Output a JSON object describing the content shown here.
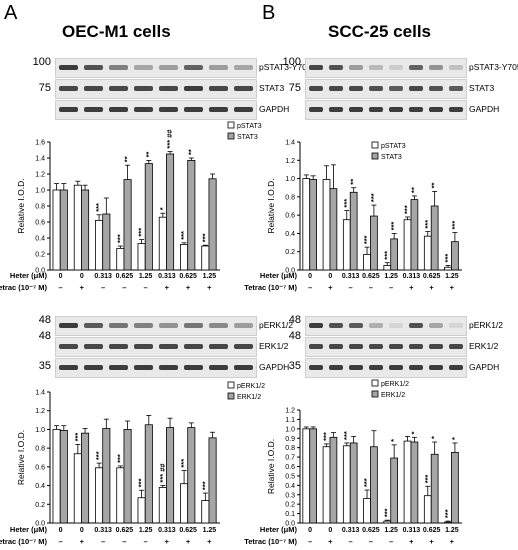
{
  "panels": [
    {
      "letter": "A",
      "title": "OEC-M1 cells",
      "blot_top": {
        "mw": [
          "100",
          "75"
        ],
        "rows": [
          {
            "label": "pSTAT3-Y705",
            "intensity": [
              0.9,
              0.8,
              0.55,
              0.35,
              0.4,
              0.7,
              0.4,
              0.35
            ]
          },
          {
            "label": "STAT3",
            "intensity": [
              0.85,
              0.85,
              0.85,
              0.85,
              0.85,
              0.9,
              0.85,
              0.85
            ]
          },
          {
            "label": "GAPDH",
            "intensity": [
              0.9,
              0.9,
              0.9,
              0.9,
              0.9,
              0.9,
              0.9,
              0.9
            ]
          }
        ]
      },
      "blot_bottom": {
        "mw": [
          "48",
          "48",
          "35"
        ],
        "rows": [
          {
            "label": "pERK1/2",
            "intensity": [
              0.9,
              0.75,
              0.6,
              0.55,
              0.45,
              0.6,
              0.5,
              0.4
            ]
          },
          {
            "label": "ERK1/2",
            "intensity": [
              0.85,
              0.85,
              0.85,
              0.85,
              0.85,
              0.85,
              0.85,
              0.85
            ]
          },
          {
            "label": "GAPDH",
            "intensity": [
              0.9,
              0.9,
              0.9,
              0.9,
              0.9,
              0.9,
              0.9,
              0.9
            ]
          }
        ]
      },
      "conditions": {
        "heter_label": "Heter (μM)",
        "heter": [
          "0",
          "0",
          "0.313",
          "0.625",
          "1.25",
          "0.313",
          "0.625",
          "1.25"
        ],
        "tetrac_label": "Tetrac (10⁻⁷ M)",
        "tetrac": [
          "–",
          "+",
          "–",
          "–",
          "–",
          "+",
          "+",
          "+"
        ]
      }
    },
    {
      "letter": "B",
      "title": "SCC-25 cells",
      "blot_top": {
        "mw": [
          "100",
          "75"
        ],
        "rows": [
          {
            "label": "pSTAT3-Y705",
            "intensity": [
              0.85,
              0.8,
              0.4,
              0.25,
              0.15,
              0.7,
              0.45,
              0.2
            ]
          },
          {
            "label": "STAT3",
            "intensity": [
              0.85,
              0.85,
              0.85,
              0.8,
              0.75,
              0.85,
              0.8,
              0.75
            ]
          },
          {
            "label": "GAPDH",
            "intensity": [
              0.9,
              0.9,
              0.9,
              0.9,
              0.9,
              0.9,
              0.9,
              0.9
            ]
          }
        ]
      },
      "blot_bottom": {
        "mw": [
          "48",
          "48",
          "35"
        ],
        "rows": [
          {
            "label": "pERK1/2",
            "intensity": [
              0.9,
              0.8,
              0.75,
              0.3,
              0.1,
              0.8,
              0.35,
              0.1
            ]
          },
          {
            "label": "ERK1/2",
            "intensity": [
              0.85,
              0.85,
              0.85,
              0.85,
              0.85,
              0.85,
              0.85,
              0.85
            ]
          },
          {
            "label": "GAPDH",
            "intensity": [
              0.9,
              0.9,
              0.9,
              0.9,
              0.9,
              0.9,
              0.9,
              0.9
            ]
          }
        ]
      },
      "conditions": {
        "heter_label": "Heter (μM)",
        "heter": [
          "0",
          "0",
          "0.313",
          "0.625",
          "1.25",
          "0.313",
          "0.625",
          "1.25"
        ],
        "tetrac_label": "Tetrac (10⁻⁷ M)",
        "tetrac": [
          "–",
          "+",
          "–",
          "–",
          "–",
          "+",
          "+",
          "+"
        ]
      }
    }
  ],
  "chart_data": [
    {
      "type": "bar",
      "panel": "A",
      "ylabel": "Relative I.O.D.",
      "ylim": [
        0,
        1.6
      ],
      "yticks": [
        "0.0",
        "0.2",
        "0.4",
        "0.6",
        "0.8",
        "1.0",
        "1.2",
        "1.4",
        "1.6"
      ],
      "series": [
        {
          "name": "pSTAT3",
          "color": "#ffffff",
          "values": [
            1.0,
            1.06,
            0.62,
            0.27,
            0.33,
            0.66,
            0.32,
            0.3
          ],
          "err": [
            0.08,
            0.05,
            0.07,
            0.03,
            0.05,
            0.05,
            0.02,
            0.01
          ]
        },
        {
          "name": "STAT3",
          "color": "#a6a6a6",
          "values": [
            1.0,
            1.0,
            0.7,
            1.13,
            1.33,
            1.45,
            1.37,
            1.14
          ],
          "err": [
            0.08,
            0.06,
            0.2,
            0.18,
            0.04,
            0.03,
            0.03,
            0.06
          ]
        }
      ],
      "annotations": [
        {
          "bar": 2,
          "series": 0,
          "text": "***"
        },
        {
          "bar": 3,
          "series": 0,
          "text": "***"
        },
        {
          "bar": 3,
          "series": 1,
          "text": "**"
        },
        {
          "bar": 4,
          "series": 0,
          "text": "***"
        },
        {
          "bar": 4,
          "series": 1,
          "text": "**"
        },
        {
          "bar": 5,
          "series": 0,
          "text": "*"
        },
        {
          "bar": 5,
          "series": 1,
          "text": "*** ##"
        },
        {
          "bar": 6,
          "series": 0,
          "text": "***"
        },
        {
          "bar": 6,
          "series": 1,
          "text": "**"
        },
        {
          "bar": 7,
          "series": 0,
          "text": "***"
        }
      ]
    },
    {
      "type": "bar",
      "panel": "B",
      "ylabel": "Relative I.O.D.",
      "ylim": [
        0,
        1.4
      ],
      "yticks": [
        "0.0",
        "0.2",
        "0.4",
        "0.6",
        "0.8",
        "1.0",
        "1.2",
        "1.4"
      ],
      "series": [
        {
          "name": "pSTAT3",
          "color": "#ffffff",
          "values": [
            1.0,
            0.99,
            0.55,
            0.17,
            0.05,
            0.55,
            0.37,
            0.03
          ],
          "err": [
            0.04,
            0.15,
            0.1,
            0.08,
            0.03,
            0.03,
            0.05,
            0.02
          ]
        },
        {
          "name": "STAT3",
          "color": "#a6a6a6",
          "values": [
            0.99,
            0.89,
            0.85,
            0.59,
            0.34,
            0.77,
            0.7,
            0.31
          ],
          "err": [
            0.04,
            0.26,
            0.05,
            0.12,
            0.06,
            0.04,
            0.16,
            0.1
          ]
        }
      ],
      "annotations": [
        {
          "bar": 2,
          "series": 0,
          "text": "***"
        },
        {
          "bar": 2,
          "series": 1,
          "text": "**"
        },
        {
          "bar": 3,
          "series": 0,
          "text": "***"
        },
        {
          "bar": 3,
          "series": 1,
          "text": "***"
        },
        {
          "bar": 4,
          "series": 0,
          "text": "***"
        },
        {
          "bar": 4,
          "series": 1,
          "text": "***"
        },
        {
          "bar": 5,
          "series": 0,
          "text": "***"
        },
        {
          "bar": 5,
          "series": 1,
          "text": "**"
        },
        {
          "bar": 6,
          "series": 0,
          "text": "***"
        },
        {
          "bar": 6,
          "series": 1,
          "text": "**"
        },
        {
          "bar": 7,
          "series": 0,
          "text": "***"
        },
        {
          "bar": 7,
          "series": 1,
          "text": "***"
        }
      ]
    },
    {
      "type": "bar",
      "panel": "A",
      "ylabel": "Relative I.O.D.",
      "ylim": [
        0,
        1.4
      ],
      "yticks": [
        "0.0",
        "0.2",
        "0.4",
        "0.6",
        "0.8",
        "1.0",
        "1.2",
        "1.4"
      ],
      "series": [
        {
          "name": "pERK1/2",
          "color": "#ffffff",
          "values": [
            1.0,
            0.74,
            0.59,
            0.59,
            0.27,
            0.38,
            0.42,
            0.24
          ],
          "err": [
            0.04,
            0.1,
            0.05,
            0.02,
            0.08,
            0.02,
            0.14,
            0.08
          ]
        },
        {
          "name": "ERK1/2",
          "color": "#a6a6a6",
          "values": [
            0.99,
            0.96,
            1.01,
            1.0,
            1.05,
            1.02,
            1.02,
            0.91
          ],
          "err": [
            0.05,
            0.05,
            0.1,
            0.09,
            0.1,
            0.1,
            0.05,
            0.06
          ]
        }
      ],
      "annotations": [
        {
          "bar": 1,
          "series": 0,
          "text": "***"
        },
        {
          "bar": 2,
          "series": 0,
          "text": "***"
        },
        {
          "bar": 3,
          "series": 0,
          "text": "***"
        },
        {
          "bar": 4,
          "series": 0,
          "text": "***"
        },
        {
          "bar": 5,
          "series": 0,
          "text": "*** ##"
        },
        {
          "bar": 6,
          "series": 0,
          "text": "***"
        },
        {
          "bar": 7,
          "series": 0,
          "text": "***"
        }
      ]
    },
    {
      "type": "bar",
      "panel": "B",
      "ylabel": "Relative I.O.D.",
      "ylim": [
        0,
        1.2
      ],
      "yticks": [
        "0.0",
        "0.1",
        "0.2",
        "0.3",
        "0.4",
        "0.5",
        "0.6",
        "0.7",
        "0.8",
        "0.9",
        "1.0",
        "1.1",
        "1.2"
      ],
      "series": [
        {
          "name": "pERK1/2",
          "color": "#ffffff",
          "values": [
            1.0,
            0.81,
            0.82,
            0.26,
            0.02,
            0.87,
            0.29,
            0.01
          ],
          "err": [
            0.02,
            0.03,
            0.03,
            0.09,
            0.01,
            0.05,
            0.1,
            0.01
          ]
        },
        {
          "name": "ERK1/2",
          "color": "#a6a6a6",
          "values": [
            1.0,
            0.91,
            0.85,
            0.81,
            0.69,
            0.86,
            0.73,
            0.75
          ],
          "err": [
            0.02,
            0.05,
            0.07,
            0.17,
            0.14,
            0.05,
            0.13,
            0.1
          ]
        }
      ],
      "annotations": [
        {
          "bar": 1,
          "series": 0,
          "text": "***"
        },
        {
          "bar": 2,
          "series": 0,
          "text": "***"
        },
        {
          "bar": 3,
          "series": 0,
          "text": "***"
        },
        {
          "bar": 4,
          "series": 0,
          "text": "***"
        },
        {
          "bar": 4,
          "series": 1,
          "text": "*"
        },
        {
          "bar": 5,
          "series": 1,
          "text": "*"
        },
        {
          "bar": 6,
          "series": 0,
          "text": "***"
        },
        {
          "bar": 6,
          "series": 1,
          "text": "*"
        },
        {
          "bar": 7,
          "series": 0,
          "text": "***"
        },
        {
          "bar": 7,
          "series": 1,
          "text": "*"
        }
      ]
    }
  ]
}
